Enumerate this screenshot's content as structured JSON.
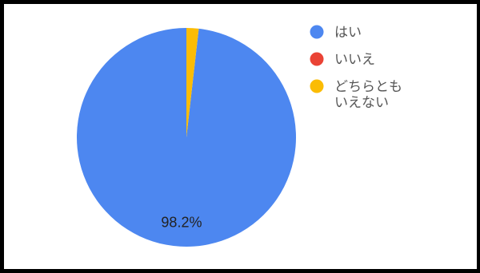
{
  "chart_data": {
    "type": "pie",
    "categories": [
      "はい",
      "いいえ",
      "どちらともいえない"
    ],
    "values": [
      98.2,
      0,
      1.8
    ],
    "colors": [
      "#4d87f0",
      "#ea4335",
      "#fbbc04"
    ],
    "data_labels": [
      "98.2%",
      "",
      ""
    ],
    "legend": {
      "placement": "right",
      "entries": [
        {
          "label_lines": [
            "はい"
          ],
          "color": "#4d87f0"
        },
        {
          "label_lines": [
            "いいえ"
          ],
          "color": "#ea4335"
        },
        {
          "label_lines": [
            "どちらとも",
            "いえない"
          ],
          "color": "#fbbc04"
        }
      ]
    }
  }
}
